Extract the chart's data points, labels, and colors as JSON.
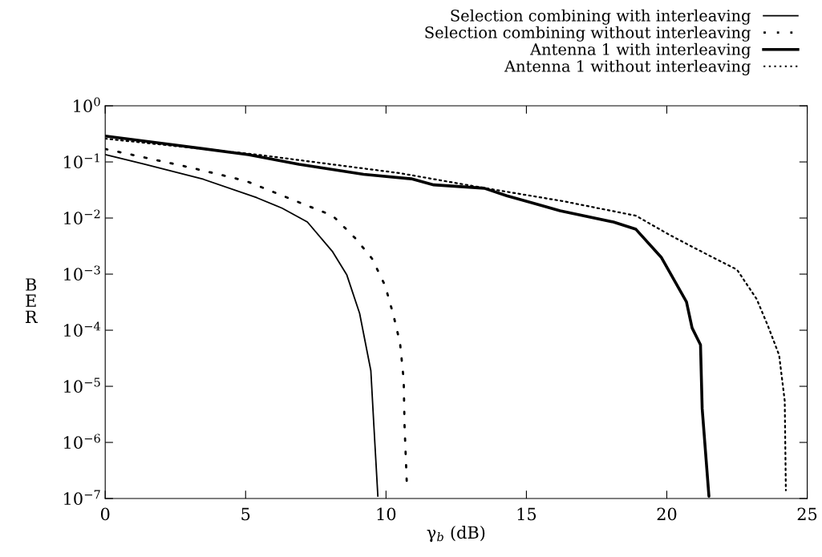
{
  "chart_data": {
    "type": "line",
    "xlabel": "γ$_{b}$ (dB)",
    "ylabel": "BER",
    "log": "y",
    "grid": false,
    "legend": "top right",
    "marker": "none",
    "xlim": [
      0,
      25
    ],
    "xticks": [
      0,
      5,
      10,
      15,
      20,
      25
    ],
    "ylim": [
      1e-07,
      1
    ],
    "yticks": [
      {
        "value": 1e-07,
        "label": "10$^{−7}$"
      },
      {
        "value": 1e-06,
        "label": "10$^{−6}$"
      },
      {
        "value": 1e-05,
        "label": "10$^{−5}$"
      },
      {
        "value": 0.0001,
        "label": "10$^{−4}$"
      },
      {
        "value": 0.001,
        "label": "10$^{−3}$"
      },
      {
        "value": 0.01,
        "label": "10$^{−2}$"
      },
      {
        "value": 0.1,
        "label": "10$^{−1}$"
      },
      {
        "value": 1,
        "label": "10$^{0}$"
      }
    ],
    "series": [
      {
        "name": "Selection combining with interleaving",
        "color": "#000000",
        "line_style": "solid",
        "x": [
          0,
          1.4,
          3.5,
          5.4,
          6.3,
          7.2,
          8.1,
          8.6,
          9.06,
          9.46,
          9.57,
          9.71
        ],
        "values": [
          0.135,
          0.091,
          0.049,
          0.023,
          0.015,
          0.0085,
          0.0025,
          0.00098,
          0.0002,
          1.9e-05,
          1.9e-06,
          1.1e-07
        ]
      },
      {
        "name": "Selection combining without interleaving",
        "color": "#000000",
        "line_style": "dotted",
        "x": [
          0,
          1.4,
          3.1,
          5.0,
          6.8,
          8.1,
          8.9,
          9.5,
          9.97,
          10.26,
          10.5,
          10.63,
          10.66,
          10.74
        ],
        "values": [
          0.17,
          0.12,
          0.078,
          0.046,
          0.02,
          0.011,
          0.0044,
          0.0019,
          0.00062,
          0.00019,
          5.9e-05,
          1.3e-05,
          2e-06,
          1.9e-07
        ]
      },
      {
        "name": "Antenna 1 with interleaving",
        "color": "#000000",
        "line_style": "solid",
        "x": [
          0,
          2.5,
          5.1,
          6.9,
          9.2,
          10.9,
          11.7,
          13.5,
          14.3,
          16.2,
          18.1,
          18.9,
          19.8,
          20.7,
          20.9,
          21.2,
          21.26,
          21.5
        ],
        "values": [
          0.29,
          0.2,
          0.135,
          0.091,
          0.06,
          0.05,
          0.039,
          0.034,
          0.025,
          0.0135,
          0.0085,
          0.0063,
          0.002,
          0.00032,
          0.00011,
          5.5e-05,
          4e-06,
          1.1e-07
        ]
      },
      {
        "name": "Antenna 1 without interleaving",
        "color": "#000000",
        "line_style": "dotted",
        "x": [
          0,
          5.4,
          10.5,
          13.4,
          16.3,
          18.9,
          20.1,
          21.0,
          22.5,
          23.2,
          23.6,
          24.0,
          24.2,
          24.24
        ],
        "values": [
          0.26,
          0.135,
          0.063,
          0.035,
          0.02,
          0.011,
          0.005,
          0.0029,
          0.0012,
          0.00036,
          0.00012,
          3.6e-05,
          5.5e-06,
          1.4e-07
        ]
      }
    ]
  }
}
